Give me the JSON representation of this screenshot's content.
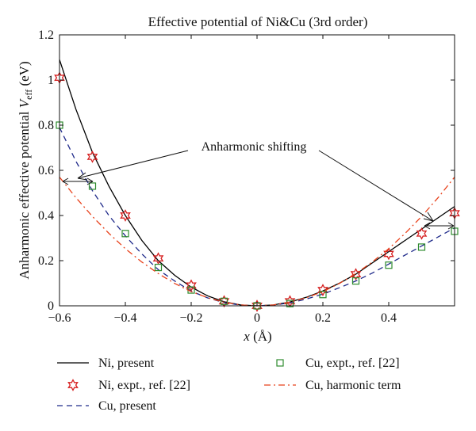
{
  "chart_data": {
    "type": "line",
    "title": "Effective potential of Ni&Cu (3rd order)",
    "xlabel": "x (Å)",
    "xlabel_var": "x",
    "xlabel_unit": " (Å)",
    "ylabel": "Anharmonic effective potential V_eff (eV)",
    "ylabel_pre": "Anharmonic effective potential ",
    "ylabel_var": "V",
    "ylabel_sub": "eff",
    "ylabel_unit": " (eV)",
    "xlim": [
      -0.6,
      0.6
    ],
    "ylim": [
      0,
      1.2
    ],
    "xticks": [
      -0.6,
      -0.4,
      -0.2,
      0,
      0.2,
      0.4
    ],
    "xtick_labels": [
      "−0.6",
      "−0.4",
      "−0.2",
      "0",
      "0.2",
      "0.4"
    ],
    "yticks": [
      0,
      0.2,
      0.4,
      0.6,
      0.8,
      1,
      1.2
    ],
    "ytick_labels": [
      "0",
      "0.2",
      "0.4",
      "0.6",
      "0.8",
      "1",
      "1.2"
    ],
    "grid": false,
    "legend_position": "bottom",
    "annotation": "Anharmonic shifting",
    "series": [
      {
        "name": "Ni, present",
        "kind": "line",
        "color": "#000000",
        "style": "solid",
        "x": [
          -0.6,
          -0.55,
          -0.5,
          -0.45,
          -0.4,
          -0.35,
          -0.3,
          -0.25,
          -0.2,
          -0.15,
          -0.1,
          -0.05,
          0,
          0.05,
          0.1,
          0.15,
          0.2,
          0.25,
          0.3,
          0.35,
          0.4,
          0.45,
          0.5,
          0.55,
          0.6
        ],
        "y": [
          1.09,
          0.87,
          0.68,
          0.53,
          0.4,
          0.29,
          0.2,
          0.135,
          0.083,
          0.044,
          0.018,
          0.004,
          0,
          0.004,
          0.017,
          0.038,
          0.066,
          0.1,
          0.14,
          0.19,
          0.24,
          0.29,
          0.34,
          0.39,
          0.44
        ]
      },
      {
        "name": "Ni, expt., ref. [22]",
        "kind": "marker",
        "marker": "star",
        "color": "#d62020",
        "x": [
          -0.6,
          -0.5,
          -0.4,
          -0.3,
          -0.2,
          -0.1,
          0,
          0.1,
          0.2,
          0.3,
          0.4,
          0.5,
          0.6
        ],
        "y": [
          1.01,
          0.66,
          0.4,
          0.21,
          0.09,
          0.02,
          0,
          0.02,
          0.07,
          0.14,
          0.23,
          0.32,
          0.41
        ]
      },
      {
        "name": "Cu, present",
        "kind": "line",
        "color": "#1f2a8a",
        "style": "dashed",
        "x": [
          -0.6,
          -0.55,
          -0.5,
          -0.45,
          -0.4,
          -0.35,
          -0.3,
          -0.25,
          -0.2,
          -0.15,
          -0.1,
          -0.05,
          0,
          0.05,
          0.1,
          0.15,
          0.2,
          0.25,
          0.3,
          0.35,
          0.4,
          0.45,
          0.5,
          0.55,
          0.6
        ],
        "y": [
          0.79,
          0.64,
          0.51,
          0.4,
          0.31,
          0.23,
          0.16,
          0.11,
          0.065,
          0.035,
          0.014,
          0.003,
          0,
          0.003,
          0.013,
          0.03,
          0.052,
          0.08,
          0.11,
          0.145,
          0.185,
          0.225,
          0.265,
          0.305,
          0.345
        ]
      },
      {
        "name": "Cu, expt., ref. [22]",
        "kind": "marker",
        "marker": "square",
        "color": "#2e8b2e",
        "x": [
          -0.6,
          -0.5,
          -0.4,
          -0.3,
          -0.2,
          -0.1,
          0,
          0.1,
          0.2,
          0.3,
          0.4,
          0.5,
          0.6
        ],
        "y": [
          0.8,
          0.53,
          0.32,
          0.17,
          0.07,
          0.02,
          0,
          0.01,
          0.05,
          0.11,
          0.18,
          0.26,
          0.33
        ]
      },
      {
        "name": "Cu, harmonic term",
        "kind": "line",
        "color": "#e8401a",
        "style": "dashdot",
        "x": [
          -0.6,
          -0.55,
          -0.5,
          -0.45,
          -0.4,
          -0.35,
          -0.3,
          -0.25,
          -0.2,
          -0.15,
          -0.1,
          -0.05,
          0,
          0.05,
          0.1,
          0.15,
          0.2,
          0.25,
          0.3,
          0.35,
          0.4,
          0.45,
          0.5,
          0.55,
          0.6
        ],
        "y": [
          0.57,
          0.479,
          0.396,
          0.321,
          0.253,
          0.194,
          0.143,
          0.099,
          0.063,
          0.036,
          0.016,
          0.004,
          0,
          0.004,
          0.016,
          0.036,
          0.063,
          0.099,
          0.143,
          0.194,
          0.253,
          0.321,
          0.396,
          0.479,
          0.57
        ]
      }
    ]
  }
}
